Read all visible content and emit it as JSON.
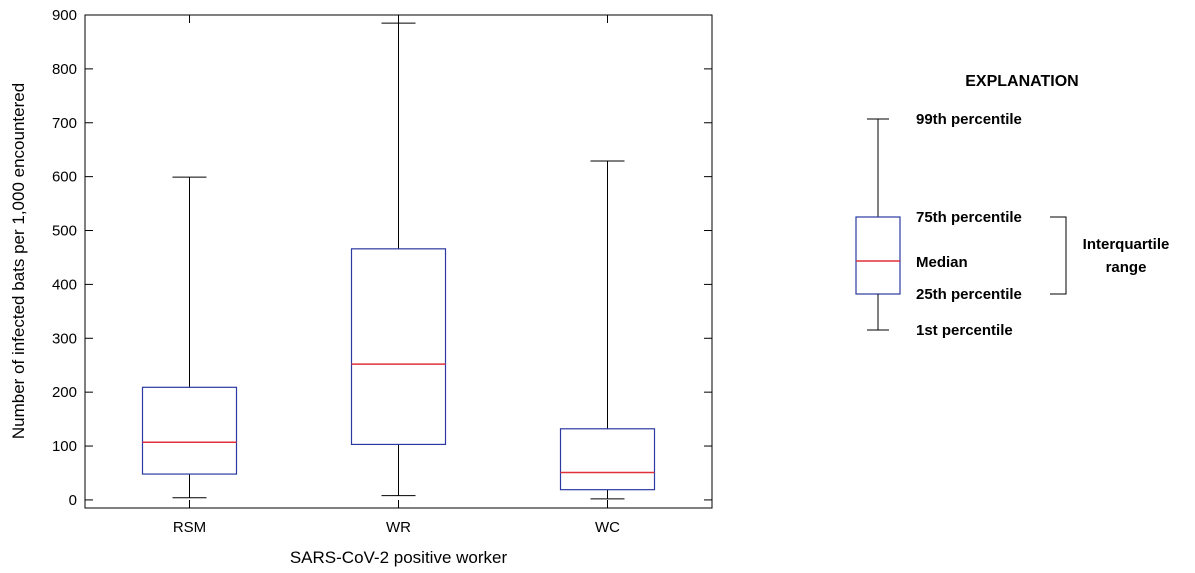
{
  "chart_data": {
    "type": "box",
    "title": "",
    "xlabel": "SARS-CoV-2 positive worker",
    "ylabel": "Number of infected bats per 1,000 encountered",
    "ylim": [
      -15,
      900
    ],
    "yticks": [
      0,
      100,
      200,
      300,
      400,
      500,
      600,
      700,
      800,
      900
    ],
    "categories": [
      "RSM",
      "WR",
      "WC"
    ],
    "boxes": [
      {
        "category": "RSM",
        "p1": 4,
        "q1": 48,
        "median": 107,
        "q3": 209,
        "p99": 599
      },
      {
        "category": "WR",
        "p1": 8,
        "q1": 103,
        "median": 252,
        "q3": 466,
        "p99": 885
      },
      {
        "category": "WC",
        "p1": 2,
        "q1": 19,
        "median": 51,
        "q3": 132,
        "p99": 629
      }
    ],
    "colors": {
      "box": "#2b3aa0",
      "median": "#e0303a",
      "whisker": "#000000"
    },
    "grid": false,
    "legend": {
      "title": "EXPLANATION",
      "placement": "right",
      "labels": {
        "p99": "99th percentile",
        "q3": "75th percentile",
        "median": "Median",
        "q1": "25th percentile",
        "p1": "1st percentile",
        "iqr_line1": "Interquartile",
        "iqr_line2": "range"
      }
    }
  }
}
